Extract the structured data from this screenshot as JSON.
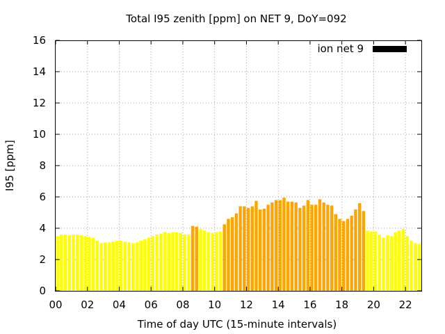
{
  "chart_data": {
    "type": "bar",
    "title": "Total I95 zenith [ppm] on NET 9, DoY=092",
    "xlabel": "Time of day UTC (15-minute intervals)",
    "ylabel": "I95 [ppm]",
    "xlim": [
      0,
      23
    ],
    "ylim": [
      0,
      16
    ],
    "x_tick_labels": [
      "00",
      "02",
      "04",
      "06",
      "08",
      "10",
      "12",
      "14",
      "16",
      "18",
      "20",
      "22"
    ],
    "x_tick_values": [
      0,
      2,
      4,
      6,
      8,
      10,
      12,
      14,
      16,
      18,
      20,
      22
    ],
    "y_tick_labels": [
      "0",
      "2",
      "4",
      "6",
      "8",
      "10",
      "12",
      "14",
      "16"
    ],
    "y_tick_values": [
      0,
      2,
      4,
      6,
      8,
      10,
      12,
      14,
      16
    ],
    "grid": true,
    "legend": {
      "label": "ion net 9",
      "placement": "top-right",
      "color": "#000000"
    },
    "bar_interval_hours": 0.25,
    "colors": {
      "low": "#ffff00",
      "elevated": "#ffa500"
    },
    "values": [
      3.5,
      3.6,
      3.6,
      3.55,
      3.6,
      3.6,
      3.55,
      3.5,
      3.45,
      3.4,
      3.2,
      3.05,
      3.1,
      3.1,
      3.15,
      3.2,
      3.2,
      3.15,
      3.1,
      3.05,
      3.1,
      3.2,
      3.3,
      3.4,
      3.5,
      3.6,
      3.65,
      3.75,
      3.7,
      3.75,
      3.75,
      3.7,
      3.6,
      3.6,
      4.15,
      4.1,
      3.95,
      3.85,
      3.75,
      3.7,
      3.75,
      3.8,
      4.25,
      4.6,
      4.7,
      4.95,
      5.4,
      5.4,
      5.3,
      5.4,
      5.75,
      5.2,
      5.25,
      5.5,
      5.65,
      5.8,
      5.8,
      5.95,
      5.7,
      5.7,
      5.65,
      5.3,
      5.45,
      5.8,
      5.5,
      5.5,
      5.85,
      5.65,
      5.5,
      5.45,
      4.9,
      4.6,
      4.45,
      4.6,
      4.8,
      5.2,
      5.6,
      5.1,
      3.85,
      3.8,
      3.8,
      3.6,
      3.4,
      3.55,
      3.5,
      3.75,
      3.85,
      3.95,
      3.5,
      3.2,
      3.05,
      3.0
    ],
    "bar_colors": [
      "low",
      "low",
      "low",
      "low",
      "low",
      "low",
      "low",
      "low",
      "low",
      "low",
      "low",
      "low",
      "low",
      "low",
      "low",
      "low",
      "low",
      "low",
      "low",
      "low",
      "low",
      "low",
      "low",
      "low",
      "low",
      "low",
      "low",
      "low",
      "low",
      "low",
      "low",
      "low",
      "low",
      "low",
      "elevated",
      "elevated",
      "low",
      "low",
      "low",
      "low",
      "low",
      "low",
      "elevated",
      "elevated",
      "elevated",
      "elevated",
      "elevated",
      "elevated",
      "elevated",
      "elevated",
      "elevated",
      "elevated",
      "elevated",
      "elevated",
      "elevated",
      "elevated",
      "elevated",
      "elevated",
      "elevated",
      "elevated",
      "elevated",
      "elevated",
      "elevated",
      "elevated",
      "elevated",
      "elevated",
      "elevated",
      "elevated",
      "elevated",
      "elevated",
      "elevated",
      "elevated",
      "elevated",
      "elevated",
      "elevated",
      "elevated",
      "elevated",
      "elevated",
      "low",
      "low",
      "low",
      "low",
      "low",
      "low",
      "low",
      "low",
      "low",
      "low",
      "low",
      "low",
      "low",
      "low"
    ]
  }
}
